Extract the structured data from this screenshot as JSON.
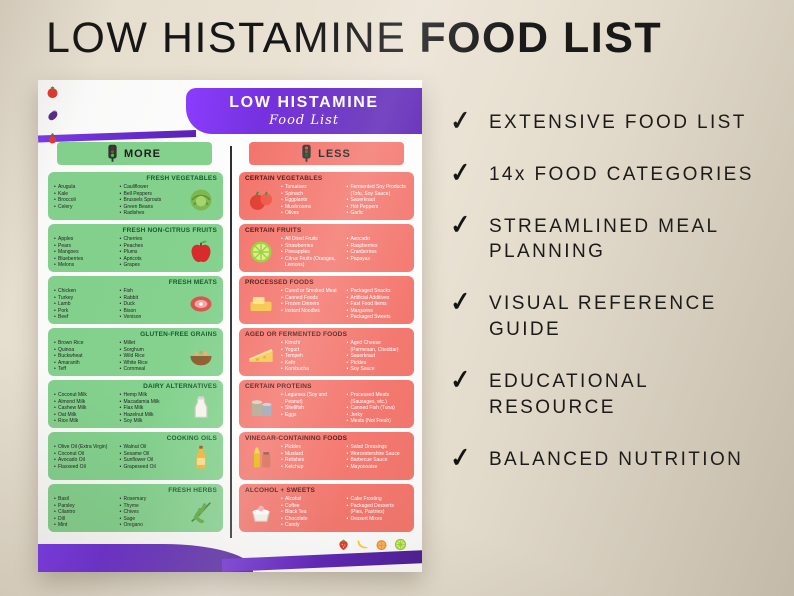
{
  "header": {
    "title_light": "LOW HISTAMINE",
    "title_bold": "FOOD LIST"
  },
  "poster": {
    "title": "LOW HISTAMINE",
    "subtitle": "Food List",
    "more_label": "MORE",
    "less_label": "LESS",
    "rows": [
      {
        "more": {
          "title": "FRESH VEGETABLES",
          "icon": "cabbage-icon",
          "col_a": [
            "Arugula",
            "Kale",
            "Broccoli",
            "Celery"
          ],
          "col_b": [
            "Cauliflower",
            "Bell Peppers",
            "Brussels Sprouts",
            "Green Beans",
            "Radishes"
          ]
        },
        "less": {
          "title": "CERTAIN VEGETABLES",
          "icon": "tomatoes-icon",
          "col_a": [
            "Tomatoes",
            "Spinach",
            "Eggplants",
            "Mushrooms",
            "Olives"
          ],
          "col_b": [
            "Fermented Soy Products (Tofu, Soy Sauce)",
            "Sauerkraut",
            "Hot Peppers",
            "Garlic"
          ]
        }
      },
      {
        "more": {
          "title": "FRESH NON-CITRUS FRUITS",
          "icon": "apple-icon",
          "col_a": [
            "Apples",
            "Pears",
            "Mangoes",
            "Blueberries",
            "Melons"
          ],
          "col_b": [
            "Cherries",
            "Peaches",
            "Plums",
            "Apricots",
            "Grapes"
          ]
        },
        "less": {
          "title": "CERTAIN FRUITS",
          "icon": "lime-icon",
          "col_a": [
            "All Dried Fruits",
            "Strawberries",
            "Pineapples",
            "Citrus Fruits (Oranges, Lemons)"
          ],
          "col_b": [
            "Avocado",
            "Raspberries",
            "Cranberries",
            "Papayas"
          ]
        }
      },
      {
        "more": {
          "title": "FRESH MEATS",
          "icon": "meat-icon",
          "col_a": [
            "Chicken",
            "Turkey",
            "Lamb",
            "Pork",
            "Beef"
          ],
          "col_b": [
            "Fish",
            "Rabbit",
            "Duck",
            "Bison",
            "Venison"
          ]
        },
        "less": {
          "title": "PROCESSED FOODS",
          "icon": "butter-icon",
          "col_a": [
            "Cured or Smoked Meat",
            "Canned Foods",
            "Frozen Dinners",
            "Instant Noodles"
          ],
          "col_b": [
            "Packaged Snacks",
            "Artificial Additives",
            "Fast Food Items",
            "Margarine",
            "Packaged Sweets"
          ]
        }
      },
      {
        "more": {
          "title": "GLUTEN-FREE GRAINS",
          "icon": "grains-icon",
          "col_a": [
            "Brown Rice",
            "Quinoa",
            "Buckwheat",
            "Amaranth",
            "Teff"
          ],
          "col_b": [
            "Millet",
            "Sorghum",
            "Wild Rice",
            "White Rice",
            "Cornmeal"
          ]
        },
        "less": {
          "title": "AGED OR FERMENTED FOODS",
          "icon": "cheese-icon",
          "col_a": [
            "Kimchi",
            "Yogurt",
            "Tempeh",
            "Kefir",
            "Kombucha"
          ],
          "col_b": [
            "Aged Cheese (Parmesan, Cheddar)",
            "Sauerkraut",
            "Pickles",
            "Soy Sauce"
          ]
        }
      },
      {
        "more": {
          "title": "DAIRY ALTERNATIVES",
          "icon": "milk-icon",
          "col_a": [
            "Coconut Milk",
            "Almond Milk",
            "Cashew Milk",
            "Oat Milk",
            "Rice Milk"
          ],
          "col_b": [
            "Hemp Milk",
            "Macadamia Milk",
            "Flax Milk",
            "Hazelnut Milk",
            "Soy Milk"
          ]
        },
        "less": {
          "title": "CERTAIN PROTEINS",
          "icon": "cans-icon",
          "col_a": [
            "Legumes (Soy and Peanut)",
            "Shellfish",
            "Eggs"
          ],
          "col_b": [
            "Processed Meats (Sausages, etc.)",
            "Canned Fish (Tuna)",
            "Jerky",
            "Meats (Not Fresh)"
          ]
        }
      },
      {
        "more": {
          "title": "COOKING OILS",
          "icon": "oil-icon",
          "col_a": [
            "Olive Oil (Extra Virgin)",
            "Coconut Oil",
            "Avocado Oil",
            "Flaxseed Oil"
          ],
          "col_b": [
            "Walnut Oil",
            "Sesame Oil",
            "Sunflower Oil",
            "Grapeseed Oil"
          ]
        },
        "less": {
          "title": "VINEGAR-CONTAINING FOODS",
          "icon": "condiments-icon",
          "col_a": [
            "Pickles",
            "Mustard",
            "Relishes",
            "Ketchup"
          ],
          "col_b": [
            "Salad Dressings",
            "Worcestershire Sauce",
            "Barbecue Sauce",
            "Mayonnaise"
          ]
        }
      },
      {
        "more": {
          "title": "FRESH HERBS",
          "icon": "herbs-icon",
          "col_a": [
            "Basil",
            "Parsley",
            "Cilantro",
            "Dill",
            "Mint"
          ],
          "col_b": [
            "Rosemary",
            "Thyme",
            "Chives",
            "Sage",
            "Oregano"
          ]
        },
        "less": {
          "title": "ALCOHOL + SWEETS",
          "icon": "dessert-icon",
          "col_a": [
            "Alcohol",
            "Coffee",
            "Black Tea",
            "Chocolate",
            "Candy"
          ],
          "col_b": [
            "Cake Frosting",
            "Packaged Desserts (Pies, Pastries)",
            "Dessert Mixes"
          ]
        }
      }
    ]
  },
  "check_glyph": "✓",
  "features": [
    "EXTENSIVE FOOD LIST",
    "14x FOOD CATEGORIES",
    "STREAMLINED MEAL PLANNING",
    "VISUAL REFERENCE GUIDE",
    "EDUCATIONAL RESOURCE",
    "BALANCED NUTRITION"
  ],
  "decor": {
    "top_left": [
      "tomato-icon",
      "eggplant-icon",
      "radish-icon"
    ],
    "bottom_right": [
      "strawberry-icon",
      "banana-icon",
      "orange-icon",
      "lime-icon"
    ]
  },
  "colors": {
    "background": "#e9e1d2",
    "purple": "#6d28d9",
    "purple_dark": "#4c1d95",
    "green": "#84d28e",
    "red": "#f3756c",
    "green_dark": "#155b2e",
    "red_dark": "#4d120c"
  }
}
